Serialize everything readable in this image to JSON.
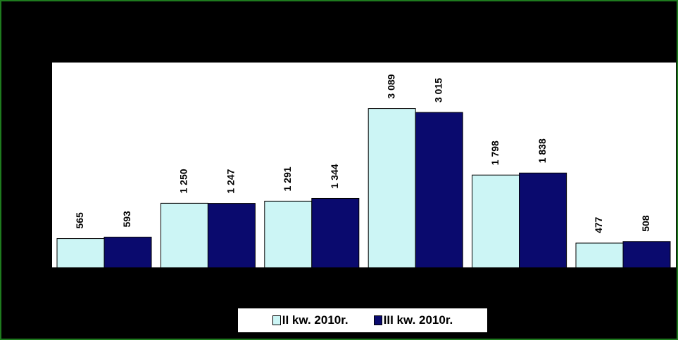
{
  "chart_data": {
    "type": "bar",
    "title": "",
    "xlabel": "",
    "ylabel": "",
    "categories": [
      "",
      "",
      "",
      "",
      "",
      ""
    ],
    "ylim": [
      0,
      3650
    ],
    "series": [
      {
        "name": "II kw. 2010r.",
        "values": [
          565,
          1250,
          1291,
          3089,
          1798,
          477
        ],
        "labels": [
          "565",
          "1 250",
          "1 291",
          "3 089",
          "1 798",
          "477"
        ],
        "color": "#ccf5f5"
      },
      {
        "name": "III kw. 2010r.",
        "values": [
          593,
          1247,
          1344,
          3015,
          1838,
          508
        ],
        "labels": [
          "593",
          "1 247",
          "1 344",
          "3 015",
          "1 838",
          "508"
        ],
        "color": "#0a0a6e"
      }
    ],
    "legend_position": "bottom",
    "grid": false
  },
  "legend": {
    "s1_label": "II kw. 2010r.",
    "s2_label": "III kw. 2010r."
  },
  "colors": {
    "background": "#000000",
    "frame": "#1e7a1e",
    "plot_area": "#ffffff"
  }
}
